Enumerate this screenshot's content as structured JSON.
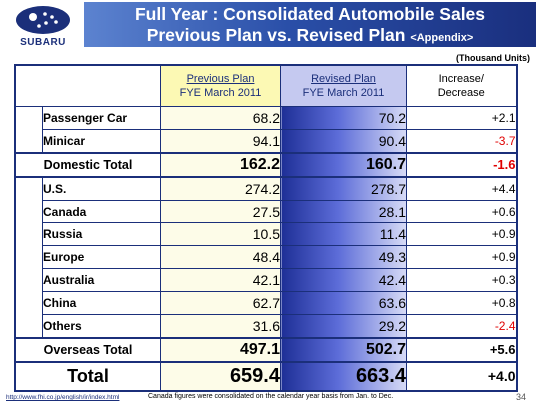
{
  "logo": {
    "text": "SUBARU"
  },
  "title": {
    "line1": "Full Year : Consolidated Automobile Sales",
    "line2": "Previous Plan vs. Revised Plan",
    "appendix": "<Appendix>"
  },
  "units": "(Thousand Units)",
  "table": {
    "headers": {
      "prev_line1": "Previous Plan",
      "prev_line2": "FYE March 2011",
      "rev_line1": "Revised Plan",
      "rev_line2": "FYE March 2011",
      "inc_line1": "Increase/",
      "inc_line2": "Decrease"
    },
    "domestic_rows": [
      {
        "label": "Passenger Car",
        "prev": "68.2",
        "rev": "70.2",
        "inc": "+2.1",
        "neg": false
      },
      {
        "label": "Minicar",
        "prev": "94.1",
        "rev": "90.4",
        "inc": "-3.7",
        "neg": true
      }
    ],
    "domestic_total": {
      "label": "Domestic Total",
      "prev": "162.2",
      "rev": "160.7",
      "inc": "-1.6",
      "neg": true
    },
    "overseas_rows": [
      {
        "label": "U.S.",
        "prev": "274.2",
        "rev": "278.7",
        "inc": "+4.4",
        "neg": false
      },
      {
        "label": "Canada",
        "prev": "27.5",
        "rev": "28.1",
        "inc": "+0.6",
        "neg": false
      },
      {
        "label": "Russia",
        "prev": "10.5",
        "rev": "11.4",
        "inc": "+0.9",
        "neg": false
      },
      {
        "label": "Europe",
        "prev": "48.4",
        "rev": "49.3",
        "inc": "+0.9",
        "neg": false
      },
      {
        "label": "Australia",
        "prev": "42.1",
        "rev": "42.4",
        "inc": "+0.3",
        "neg": false
      },
      {
        "label": "China",
        "prev": "62.7",
        "rev": "63.6",
        "inc": "+0.8",
        "neg": false
      },
      {
        "label": "Others",
        "prev": "31.6",
        "rev": "29.2",
        "inc": "-2.4",
        "neg": true
      }
    ],
    "overseas_total": {
      "label": "Overseas Total",
      "prev": "497.1",
      "rev": "502.7",
      "inc": "+5.6",
      "neg": false
    },
    "grand_total": {
      "label": "Total",
      "prev": "659.4",
      "rev": "663.4",
      "inc": "+4.0",
      "neg": false
    }
  },
  "footer": {
    "url": "http://www.fhi.co.jp/english/ir/index.html",
    "note": "Canada figures were consolidated on the calendar year basis from Jan. to Dec.",
    "page": "34"
  },
  "colors": {
    "brand_navy": "#1b2f7a",
    "negative_red": "#e00000",
    "prev_header_yellow": "#fcf9b4",
    "rev_header_lavender": "#c5c9f0"
  }
}
